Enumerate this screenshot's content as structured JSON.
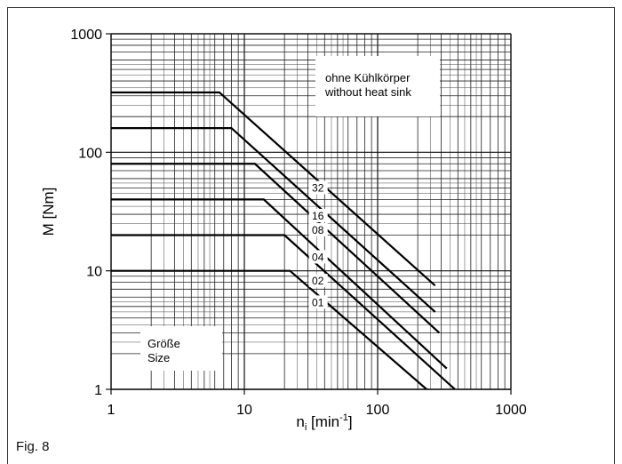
{
  "figure": {
    "label": "Fig. 8"
  },
  "chart_data": {
    "type": "line",
    "xscale": "log",
    "yscale": "log",
    "xlim": [
      1,
      1000
    ],
    "ylim": [
      1,
      1000
    ],
    "x_ticks": [
      "1",
      "10",
      "100",
      "1000"
    ],
    "y_ticks": [
      "1",
      "10",
      "100",
      "1000"
    ],
    "ylabel": "M [Nm]",
    "xlabel": {
      "base": "n",
      "subscript": "i",
      "unit_open": " [min",
      "superscript": "-1",
      "unit_close": "]"
    },
    "grid": true,
    "annotation": {
      "line1": "ohne Kühlkörper",
      "line2": "without heat sink"
    },
    "legend_box": {
      "line1": "Größe",
      "line2": "Size"
    },
    "series": [
      {
        "name": "32",
        "plateau": 320,
        "knee_x": 6.5,
        "end_x": 270,
        "end_y": 7.5,
        "label_x": 31,
        "label_y": 50
      },
      {
        "name": "16",
        "plateau": 160,
        "knee_x": 8,
        "end_x": 270,
        "end_y": 4.5,
        "label_x": 31,
        "label_y": 29
      },
      {
        "name": "08",
        "plateau": 80,
        "knee_x": 12,
        "end_x": 290,
        "end_y": 3,
        "label_x": 31,
        "label_y": 22
      },
      {
        "name": "04",
        "plateau": 40,
        "knee_x": 14,
        "end_x": 330,
        "end_y": 1.5,
        "label_x": 31,
        "label_y": 13
      },
      {
        "name": "02",
        "plateau": 20,
        "knee_x": 20,
        "end_x": 380,
        "end_y": 1,
        "label_x": 31,
        "label_y": 8.2
      },
      {
        "name": "01",
        "plateau": 10,
        "knee_x": 22,
        "end_x": 260,
        "end_y": 0.9,
        "label_x": 31,
        "label_y": 5.4
      }
    ]
  }
}
